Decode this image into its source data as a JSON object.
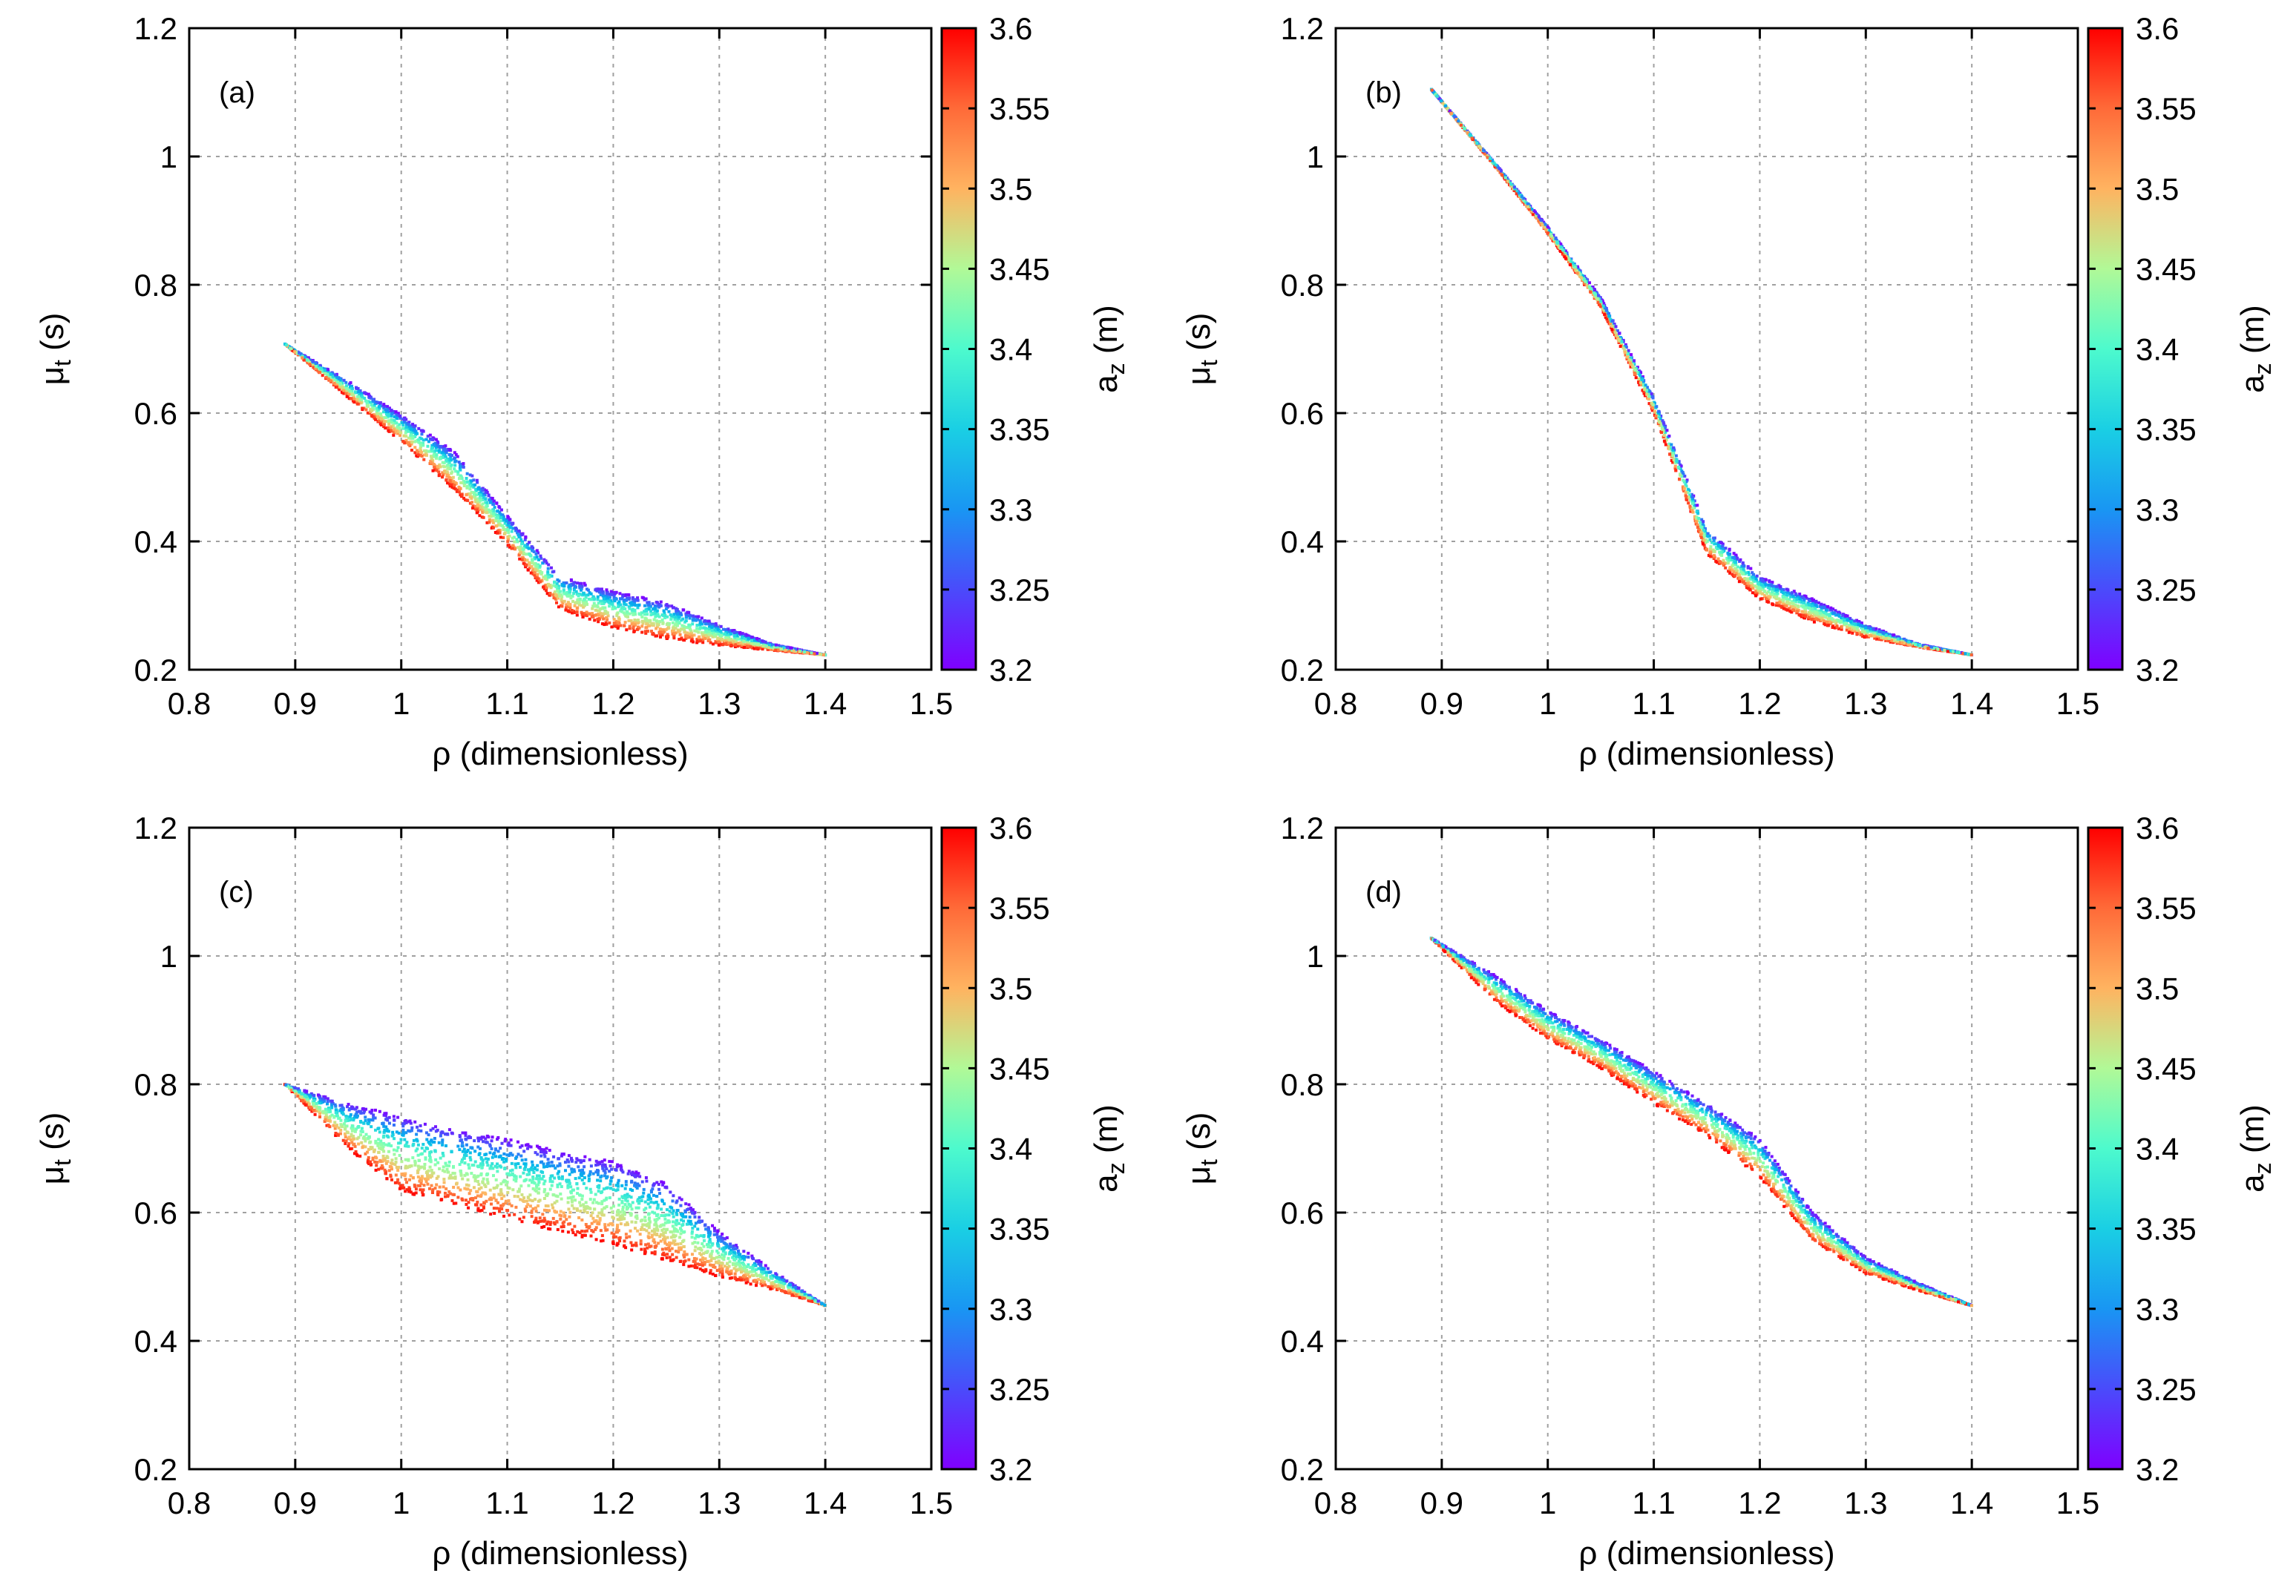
{
  "chart_data": [
    {
      "type": "scatter",
      "panel_label": "(a)",
      "xlabel": "ρ (dimensionless)",
      "ylabel_main": "μ",
      "ylabel_sub": "t",
      "ylabel_unit": " (s)",
      "xlim": [
        0.8,
        1.5
      ],
      "ylim": [
        0.2,
        1.2
      ],
      "x_ticks": [
        "0.8",
        "0.9",
        "1",
        "1.1",
        "1.2",
        "1.3",
        "1.4",
        "1.5"
      ],
      "y_ticks": [
        "0.2",
        "0.4",
        "0.6",
        "0.8",
        "1",
        "1.2"
      ],
      "grid": true,
      "color_variable": "a_z",
      "colorbar": {
        "label_main": "a",
        "label_sub": "z",
        "label_unit": " (m)",
        "range": [
          3.2,
          3.6
        ],
        "ticks": [
          "3.2",
          "3.25",
          "3.3",
          "3.35",
          "3.4",
          "3.45",
          "3.5",
          "3.55",
          "3.6"
        ]
      },
      "band": {
        "x": [
          0.89,
          0.95,
          1.0,
          1.05,
          1.1,
          1.15,
          1.2,
          1.25,
          1.3,
          1.35,
          1.4
        ],
        "low": [
          0.708,
          0.624,
          0.555,
          0.48,
          0.395,
          0.294,
          0.265,
          0.248,
          0.238,
          0.23,
          0.223
        ],
        "high": [
          0.708,
          0.65,
          0.597,
          0.54,
          0.44,
          0.345,
          0.322,
          0.305,
          0.27,
          0.24,
          0.223
        ]
      }
    },
    {
      "type": "scatter",
      "panel_label": "(b)",
      "xlabel": "ρ (dimensionless)",
      "ylabel_main": "μ",
      "ylabel_sub": "t",
      "ylabel_unit": " (s)",
      "xlim": [
        0.8,
        1.5
      ],
      "ylim": [
        0.2,
        1.2
      ],
      "x_ticks": [
        "0.8",
        "0.9",
        "1",
        "1.1",
        "1.2",
        "1.3",
        "1.4",
        "1.5"
      ],
      "y_ticks": [
        "0.2",
        "0.4",
        "0.6",
        "0.8",
        "1",
        "1.2"
      ],
      "grid": true,
      "color_variable": "a_z",
      "colorbar": {
        "label_main": "a",
        "label_sub": "z",
        "label_unit": " (m)",
        "range": [
          3.2,
          3.6
        ],
        "ticks": [
          "3.2",
          "3.25",
          "3.3",
          "3.35",
          "3.4",
          "3.45",
          "3.5",
          "3.55",
          "3.6"
        ]
      },
      "band": {
        "x": [
          0.89,
          0.95,
          1.0,
          1.05,
          1.1,
          1.15,
          1.2,
          1.25,
          1.3,
          1.35,
          1.4
        ],
        "low": [
          1.105,
          0.985,
          0.88,
          0.765,
          0.6,
          0.38,
          0.31,
          0.275,
          0.25,
          0.235,
          0.223
        ],
        "high": [
          1.105,
          0.99,
          0.89,
          0.78,
          0.625,
          0.42,
          0.345,
          0.31,
          0.27,
          0.24,
          0.223
        ]
      }
    },
    {
      "type": "scatter",
      "panel_label": "(c)",
      "xlabel": "ρ (dimensionless)",
      "ylabel_main": "μ",
      "ylabel_sub": "t",
      "ylabel_unit": " (s)",
      "xlim": [
        0.8,
        1.5
      ],
      "ylim": [
        0.2,
        1.2
      ],
      "x_ticks": [
        "0.8",
        "0.9",
        "1",
        "1.1",
        "1.2",
        "1.3",
        "1.4",
        "1.5"
      ],
      "y_ticks": [
        "0.2",
        "0.4",
        "0.6",
        "0.8",
        "1",
        "1.2"
      ],
      "grid": true,
      "color_variable": "a_z",
      "colorbar": {
        "label_main": "a",
        "label_sub": "z",
        "label_unit": " (m)",
        "range": [
          3.2,
          3.6
        ],
        "ticks": [
          "3.2",
          "3.25",
          "3.3",
          "3.35",
          "3.4",
          "3.45",
          "3.5",
          "3.55",
          "3.6"
        ]
      },
      "band": {
        "x": [
          0.89,
          0.95,
          1.0,
          1.05,
          1.1,
          1.15,
          1.2,
          1.25,
          1.3,
          1.35,
          1.4
        ],
        "low": [
          0.8,
          0.7,
          0.633,
          0.612,
          0.59,
          0.57,
          0.55,
          0.525,
          0.5,
          0.48,
          0.455
        ],
        "high": [
          0.8,
          0.77,
          0.75,
          0.73,
          0.715,
          0.695,
          0.68,
          0.645,
          0.57,
          0.51,
          0.455
        ]
      }
    },
    {
      "type": "scatter",
      "panel_label": "(d)",
      "xlabel": "ρ (dimensionless)",
      "ylabel_main": "μ",
      "ylabel_sub": "t",
      "ylabel_unit": " (s)",
      "xlim": [
        0.8,
        1.5
      ],
      "ylim": [
        0.2,
        1.2
      ],
      "x_ticks": [
        "0.8",
        "0.9",
        "1",
        "1.1",
        "1.2",
        "1.3",
        "1.4",
        "1.5"
      ],
      "y_ticks": [
        "0.2",
        "0.4",
        "0.6",
        "0.8",
        "1",
        "1.2"
      ],
      "grid": true,
      "color_variable": "a_z",
      "colorbar": {
        "label_main": "a",
        "label_sub": "z",
        "label_unit": " (m)",
        "range": [
          3.2,
          3.6
        ],
        "ticks": [
          "3.2",
          "3.25",
          "3.3",
          "3.35",
          "3.4",
          "3.45",
          "3.5",
          "3.55",
          "3.6"
        ]
      },
      "band": {
        "x": [
          0.89,
          0.95,
          1.0,
          1.05,
          1.1,
          1.15,
          1.2,
          1.25,
          1.3,
          1.35,
          1.4
        ],
        "low": [
          1.028,
          0.93,
          0.87,
          0.825,
          0.77,
          0.72,
          0.655,
          0.555,
          0.505,
          0.478,
          0.455
        ],
        "high": [
          1.028,
          0.97,
          0.915,
          0.87,
          0.82,
          0.77,
          0.715,
          0.6,
          0.53,
          0.49,
          0.455
        ]
      }
    }
  ]
}
